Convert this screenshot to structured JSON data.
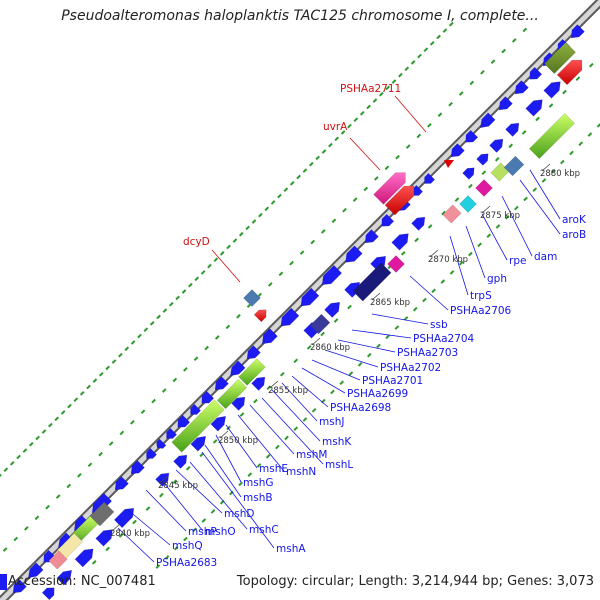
{
  "title": "Pseudoalteromonas haloplanktis TAC125 chromosome I, complete...",
  "footer": {
    "accession_label": "Accession: NC_007481",
    "stats": "Topology: circular; Length: 3,214,944 bp; Genes: 3,073"
  },
  "colors": {
    "cds": "#1c1cf2",
    "backbone": "#a0a0a0",
    "dots": "#2a9a2a",
    "label_blue": "#1515e8",
    "label_red": "#d11010"
  },
  "ticks": [
    "2840 kbp",
    "2845 kbp",
    "2850 kbp",
    "2855 kbp",
    "2860 kbp",
    "2865 kbp",
    "2870 kbp",
    "2875 kbp",
    "2880 kbp"
  ],
  "gene_labels": [
    "PSHAa2683",
    "mshQ",
    "mshP",
    "mshO",
    "mshD",
    "mshC",
    "mshA",
    "mshB",
    "mshG",
    "mshE",
    "mshN",
    "mshM",
    "mshL",
    "mshK",
    "mshJ",
    "PSHAa2698",
    "PSHAa2699",
    "PSHAa2701",
    "PSHAa2702",
    "PSHAa2703",
    "PSHAa2704",
    "ssb",
    "PSHAa2706",
    "trpS",
    "gph",
    "rpe",
    "dam",
    "aroB",
    "aroK"
  ],
  "rna_labels": [
    "PSHAa2711",
    "uvrA",
    "dcyD"
  ]
}
